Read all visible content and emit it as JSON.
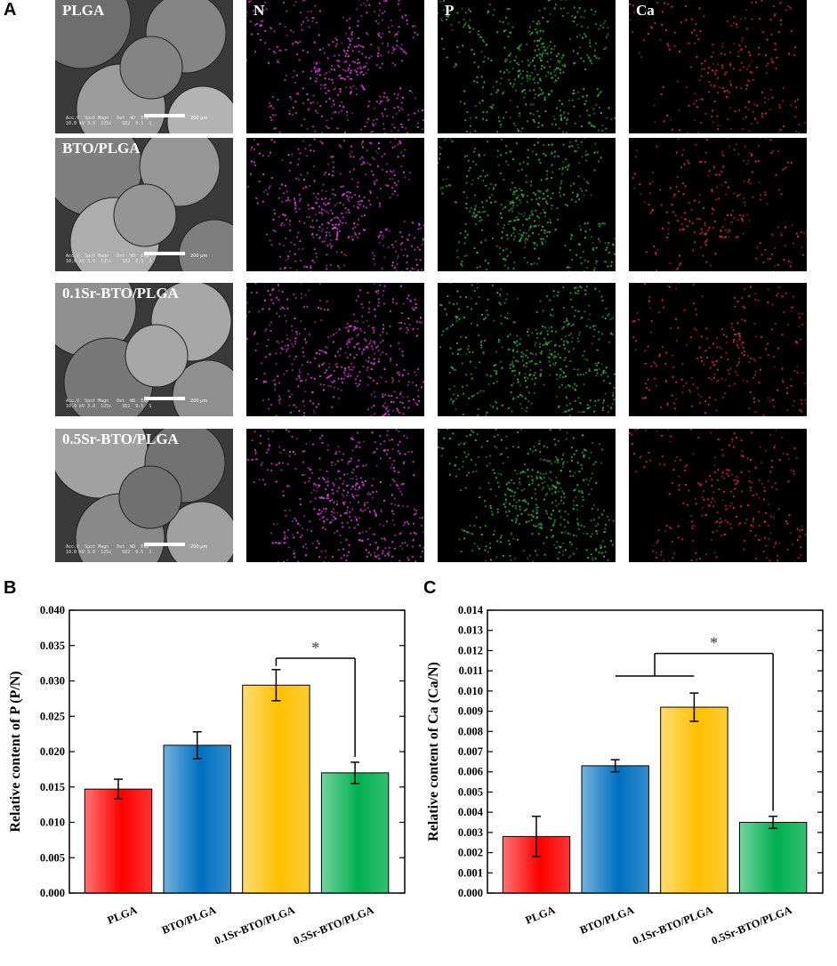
{
  "panel_labels": {
    "a": "A",
    "b": "B",
    "c": "C"
  },
  "micrograph_grid": {
    "rows": [
      "PLGA",
      "BTO/PLGA",
      "0.1Sr-BTO/PLGA",
      "0.5Sr-BTO/PLGA"
    ],
    "element_maps": [
      {
        "label": "N",
        "color": "#d83bd6"
      },
      {
        "label": "P",
        "color": "#2fae3c"
      },
      {
        "label": "Ca",
        "color": "#d92a2a"
      }
    ],
    "sem_meta": "Acc.V  Spot Magn   Det  WD  Exp\n10.0 kV 3.0  125x    SE2  9.5  1",
    "scale_text": "200 μm"
  },
  "chart_data": [
    {
      "type": "bar",
      "categories": [
        "PLGA",
        "BTO/PLGA",
        "0.1Sr-BTO/PLGA",
        "0.5Sr-BTO/PLGA"
      ],
      "values": [
        0.0147,
        0.0209,
        0.0294,
        0.017
      ],
      "errors": [
        0.0014,
        0.0019,
        0.0022,
        0.0015
      ],
      "colors": [
        "#ff0000",
        "#0070c0",
        "#ffc000",
        "#00b050"
      ],
      "ylabel": "Relative content of P (P/N)",
      "ylim": [
        0,
        0.04
      ],
      "yticks": [
        "0.000",
        "0.005",
        "0.010",
        "0.015",
        "0.020",
        "0.025",
        "0.030",
        "0.035",
        "0.040"
      ],
      "significance": {
        "label": "*",
        "between": [
          2,
          3
        ]
      }
    },
    {
      "type": "bar",
      "categories": [
        "PLGA",
        "BTO/PLGA",
        "0.1Sr-BTO/PLGA",
        "0.5Sr-BTO/PLGA"
      ],
      "values": [
        0.0028,
        0.0063,
        0.0092,
        0.0035
      ],
      "errors": [
        0.001,
        0.0003,
        0.0007,
        0.0003
      ],
      "colors": [
        "#ff0000",
        "#0070c0",
        "#ffc000",
        "#00b050"
      ],
      "ylabel": "Relative content of Ca (Ca/N)",
      "ylim": [
        0,
        0.014
      ],
      "yticks": [
        "0.000",
        "0.001",
        "0.002",
        "0.003",
        "0.004",
        "0.005",
        "0.006",
        "0.007",
        "0.008",
        "0.009",
        "0.010",
        "0.011",
        "0.012",
        "0.013",
        "0.014"
      ],
      "significance": {
        "label": "*",
        "between": [
          1,
          3
        ],
        "group_with": [
          1,
          2
        ]
      }
    }
  ]
}
